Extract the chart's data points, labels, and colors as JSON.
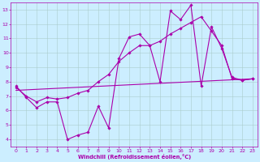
{
  "xlabel": "Windchill (Refroidissement éolien,°C)",
  "background_color": "#cceeff",
  "grid_color": "#aacccc",
  "line_color": "#aa00aa",
  "xlim": [
    -0.5,
    23.5
  ],
  "ylim": [
    3.5,
    13.5
  ],
  "xticks": [
    0,
    1,
    2,
    3,
    4,
    5,
    6,
    7,
    8,
    9,
    10,
    11,
    12,
    13,
    14,
    15,
    16,
    17,
    18,
    19,
    20,
    21,
    22,
    23
  ],
  "yticks": [
    4,
    5,
    6,
    7,
    8,
    9,
    10,
    11,
    12,
    13
  ],
  "line1_x": [
    0,
    1,
    2,
    3,
    4,
    5,
    6,
    7,
    8,
    9,
    10,
    11,
    12,
    13,
    14,
    15,
    16,
    17,
    18,
    19,
    20,
    21,
    22,
    23
  ],
  "line1_y": [
    7.7,
    6.9,
    6.2,
    6.6,
    6.6,
    4.0,
    4.3,
    4.5,
    6.3,
    4.8,
    9.6,
    11.1,
    11.3,
    10.5,
    8.0,
    12.9,
    12.3,
    13.3,
    7.7,
    11.8,
    10.3,
    8.3,
    8.1,
    8.2
  ],
  "line2_x": [
    0,
    1,
    2,
    3,
    4,
    5,
    6,
    7,
    8,
    9,
    10,
    11,
    12,
    13,
    14,
    15,
    16,
    17,
    18,
    19,
    20,
    21,
    22,
    23
  ],
  "line2_y": [
    7.6,
    7.0,
    6.6,
    6.9,
    6.8,
    6.9,
    7.2,
    7.4,
    8.0,
    8.5,
    9.4,
    10.0,
    10.5,
    10.5,
    10.8,
    11.3,
    11.7,
    12.1,
    12.5,
    11.5,
    10.5,
    8.2,
    8.1,
    8.2
  ],
  "line3_x": [
    0,
    23
  ],
  "line3_y": [
    7.4,
    8.2
  ]
}
